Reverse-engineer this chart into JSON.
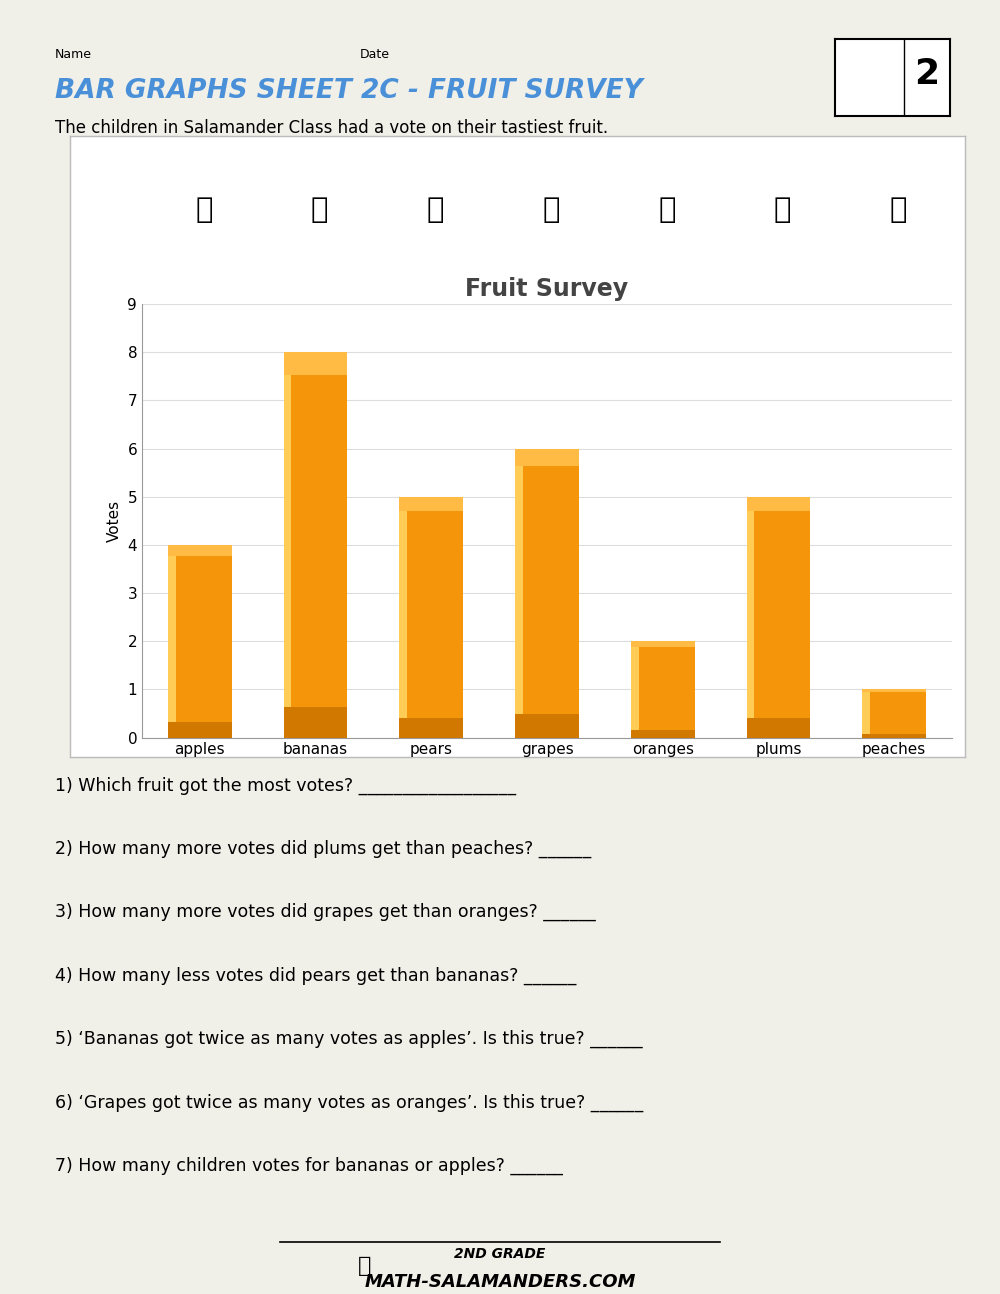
{
  "title": "BAR GRAPHS SHEET 2C - FRUIT SURVEY",
  "subtitle": "The children in Salamander Class had a vote on their tastiest fruit.",
  "chart_title": "Fruit Survey",
  "name_label": "Name",
  "date_label": "Date",
  "categories": [
    "apples",
    "bananas",
    "pears",
    "grapes",
    "oranges",
    "plums",
    "peaches"
  ],
  "values": [
    4,
    8,
    5,
    6,
    2,
    5,
    1
  ],
  "bar_color": "#F5950A",
  "bar_edge_color": "#D07800",
  "bar_highlight": "#FFCC55",
  "ylabel": "Votes",
  "ylim": [
    0,
    9
  ],
  "yticks": [
    0,
    1,
    2,
    3,
    4,
    5,
    6,
    7,
    8,
    9
  ],
  "title_color": "#4A90D9",
  "chart_title_color": "#444444",
  "bg_color": "#F0EFE8",
  "plot_bg_color": "#FFFFFF",
  "border_color": "#BBBBBB",
  "questions": [
    "1) Which fruit got the most votes? __________________",
    "2) How many more votes did plums get than peaches? ______",
    "3) How many more votes did grapes get than oranges? ______",
    "4) How many less votes did pears get than bananas? ______",
    "5) ‘Bananas got twice as many votes as apples’. Is this true? ______",
    "6) ‘Grapes got twice as many votes as oranges’. Is this true? ______",
    "7) How many children votes for bananas or apples? ______"
  ],
  "footer_line1": "2ND GRADE",
  "footer_line2": "ATH-SALAMANDERS.COM",
  "top_bar_color": "#111111",
  "grid_color": "#DDDDDD"
}
